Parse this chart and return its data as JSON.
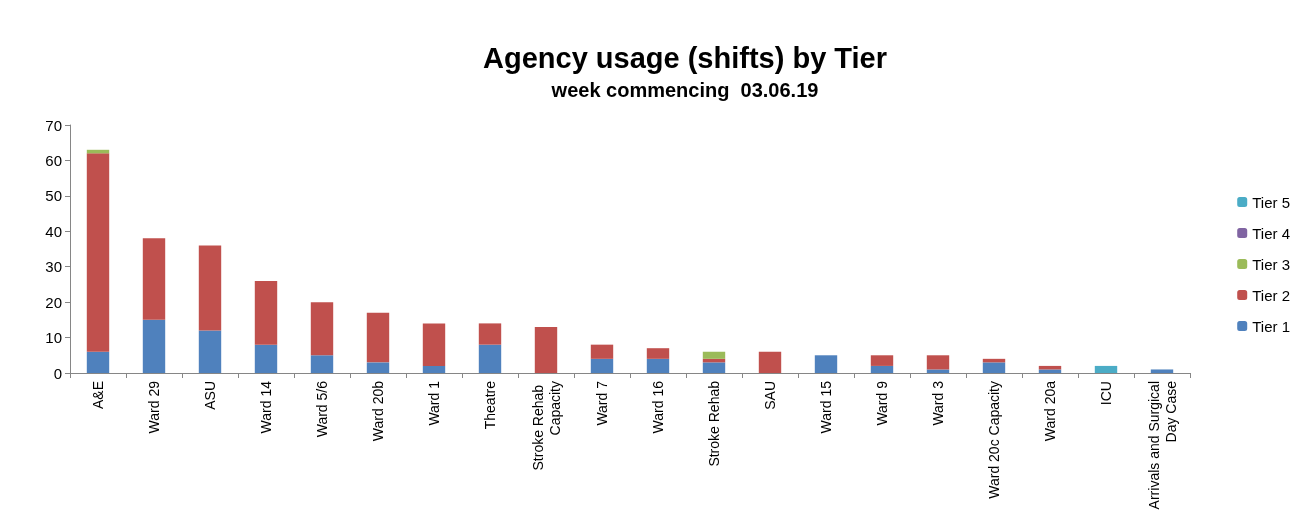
{
  "chart_data": {
    "type": "bar",
    "title": "Agency usage (shifts) by Tier",
    "subtitle": "week commencing  03.06.19",
    "categories": [
      "A&E",
      "Ward 29",
      "ASU",
      "Ward 14",
      "Ward 5/6",
      "Ward 20b",
      "Ward 1",
      "Theatre",
      "Stroke Rehab Capacity",
      "Ward 7",
      "Ward 16",
      "Stroke Rehab",
      "SAU",
      "Ward 15",
      "Ward 9",
      "Ward 3",
      "Ward 20c Capacity",
      "Ward 20a",
      "ICU",
      "Arrivals and Surgical Day Case"
    ],
    "series": [
      {
        "name": "Tier 1",
        "color": "#4f81bd",
        "values": [
          6,
          15,
          12,
          8,
          5,
          3,
          2,
          8,
          null,
          4,
          4,
          3,
          null,
          5,
          2,
          1,
          3,
          1,
          null,
          1
        ]
      },
      {
        "name": "Tier 2",
        "color": "#c0504d",
        "values": [
          56,
          23,
          24,
          18,
          15,
          14,
          12,
          6,
          13,
          4,
          3,
          1,
          6,
          null,
          3,
          4,
          1,
          1,
          null,
          null
        ]
      },
      {
        "name": "Tier 3",
        "color": "#9bbb59",
        "values": [
          1,
          null,
          null,
          null,
          null,
          null,
          null,
          null,
          null,
          null,
          null,
          2,
          null,
          null,
          null,
          null,
          null,
          null,
          null,
          null
        ]
      },
      {
        "name": "Tier 4",
        "color": "#8064a2",
        "values": [
          null,
          null,
          null,
          null,
          null,
          null,
          null,
          null,
          null,
          null,
          null,
          null,
          null,
          null,
          null,
          null,
          null,
          null,
          null,
          null
        ]
      },
      {
        "name": "Tier 5",
        "color": "#4bacc6",
        "values": [
          null,
          null,
          null,
          null,
          null,
          null,
          null,
          null,
          null,
          null,
          null,
          null,
          null,
          null,
          null,
          null,
          null,
          null,
          2,
          null
        ]
      }
    ],
    "stacked": true,
    "ylim": [
      0,
      70
    ],
    "yticks": [
      0,
      10,
      20,
      30,
      40,
      50,
      60,
      70
    ],
    "grid": false,
    "legend": "right"
  }
}
